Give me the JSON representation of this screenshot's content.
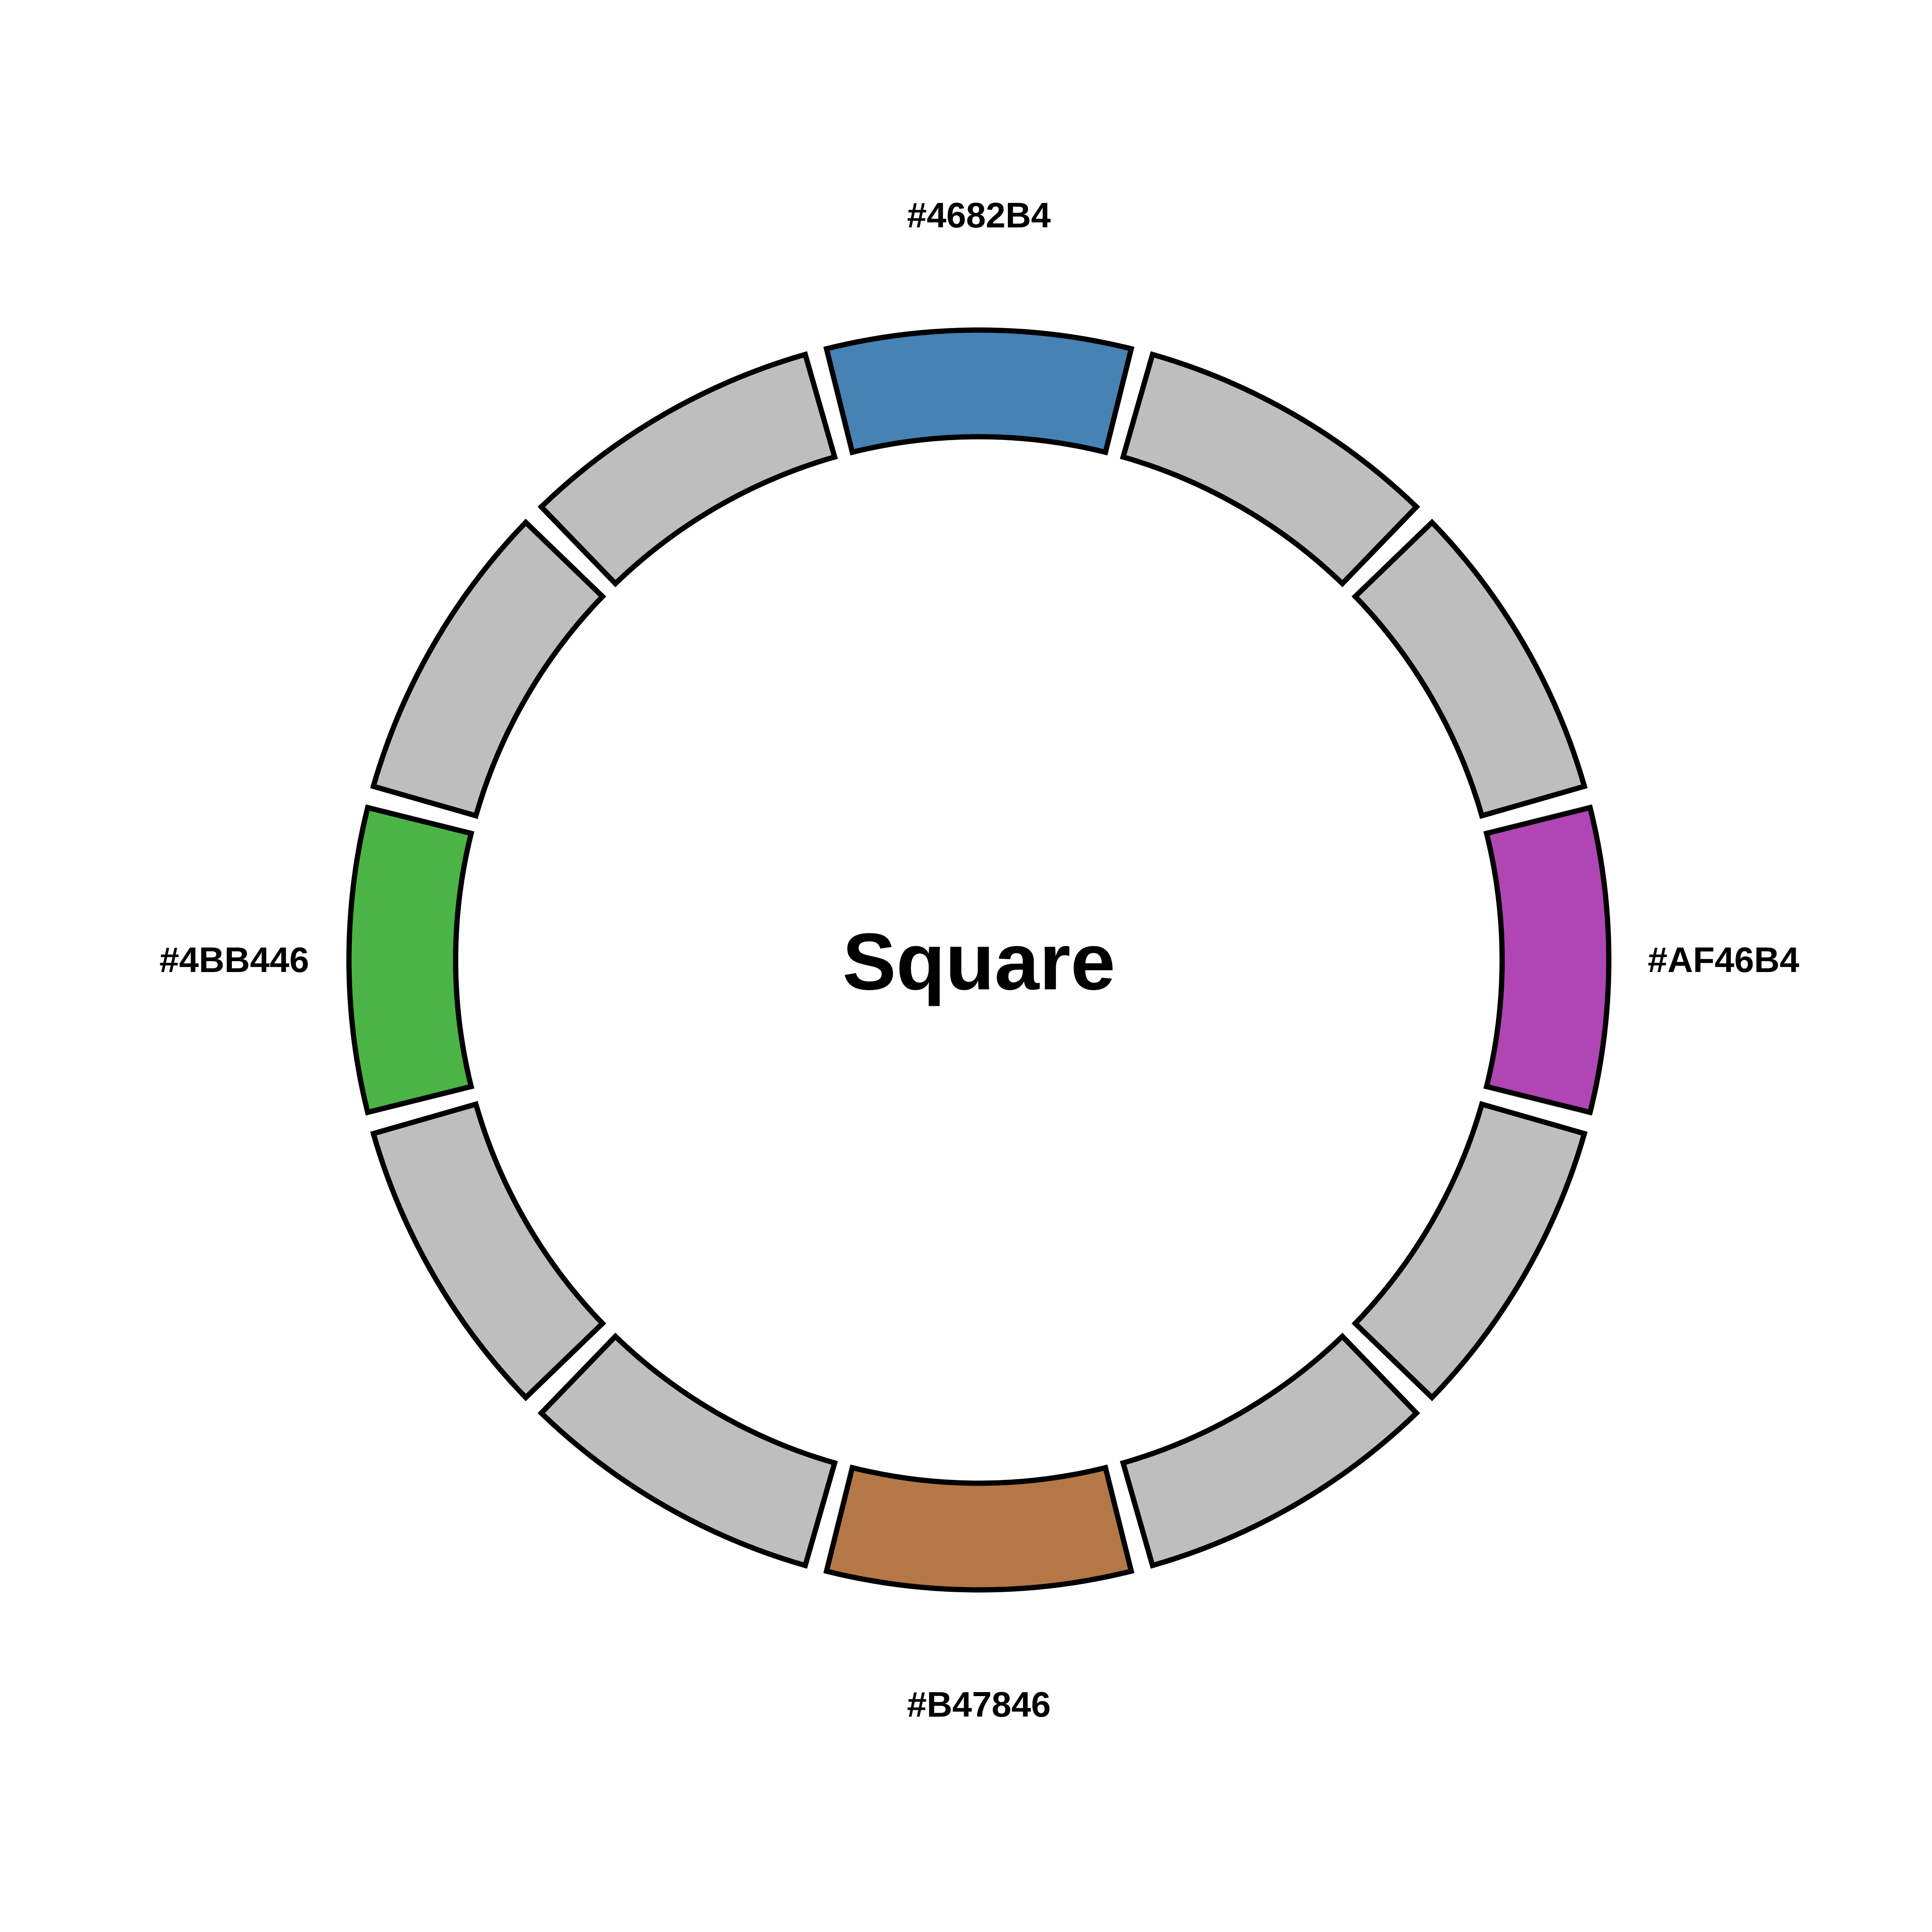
{
  "diagram": {
    "center_label": "Square",
    "segments": [
      {
        "color": "#4682B4",
        "label": "#4682B4"
      },
      {
        "color": "#BEBEBE",
        "label": ""
      },
      {
        "color": "#BEBEBE",
        "label": ""
      },
      {
        "color": "#AF46B4",
        "label": "#AF46B4"
      },
      {
        "color": "#BEBEBE",
        "label": ""
      },
      {
        "color": "#BEBEBE",
        "label": ""
      },
      {
        "color": "#B47846",
        "label": "#B47846"
      },
      {
        "color": "#BEBEBE",
        "label": ""
      },
      {
        "color": "#BEBEBE",
        "label": ""
      },
      {
        "color": "#4BB446",
        "label": "#4BB446"
      },
      {
        "color": "#BEBEBE",
        "label": ""
      },
      {
        "color": "#BEBEBE",
        "label": ""
      }
    ]
  }
}
